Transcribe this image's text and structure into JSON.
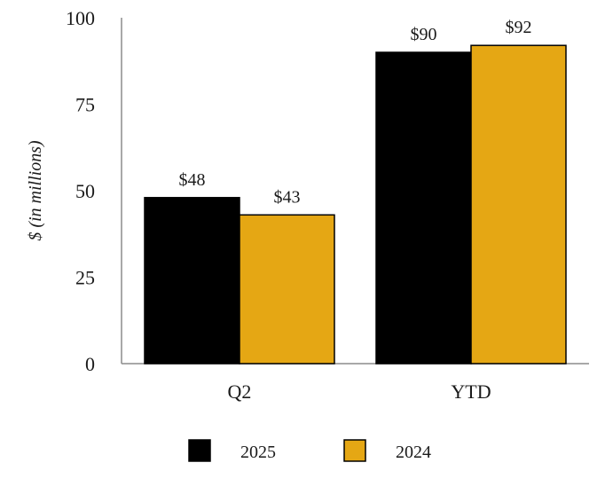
{
  "chart_data": {
    "type": "bar",
    "title": "",
    "xlabel": "",
    "ylabel": "$ (in millions)",
    "ylim": [
      0,
      100
    ],
    "yticks": [
      0,
      25,
      50,
      75,
      100
    ],
    "categories": [
      "Q2",
      "YTD"
    ],
    "series": [
      {
        "name": "2025",
        "color": "#000000",
        "values": [
          48,
          90
        ],
        "labels": [
          "$48",
          "$90"
        ]
      },
      {
        "name": "2024",
        "color": "#E5A714",
        "values": [
          43,
          92
        ],
        "labels": [
          "$43",
          "$92"
        ]
      }
    ],
    "legend_position": "bottom",
    "grid": false
  }
}
